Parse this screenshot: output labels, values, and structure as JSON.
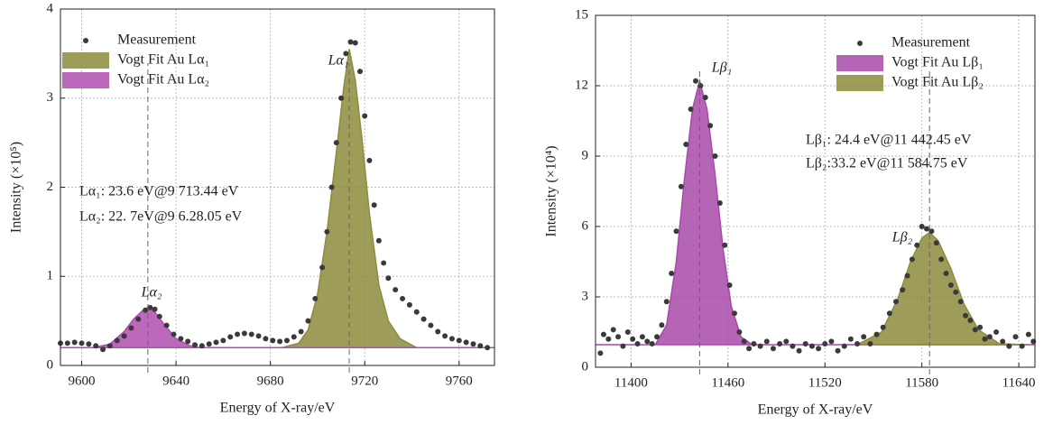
{
  "chart_data": [
    {
      "type": "spectrum",
      "xlabel": "Energy of X-ray/eV",
      "ylabel": "Intensity (×10⁵)",
      "xlim": [
        9591,
        9775
      ],
      "xticks": [
        9600,
        9640,
        9680,
        9720,
        9760
      ],
      "ylim": [
        0,
        4
      ],
      "yticks": [
        0,
        1,
        2,
        3,
        4
      ],
      "grid": true,
      "legend": "upper left",
      "series": [
        {
          "name": "Measurement",
          "kind": "scatter",
          "color": "#3a3a3a",
          "x": [
            9591,
            9594,
            9597,
            9600,
            9603,
            9606,
            9609,
            9612,
            9615,
            9618,
            9621,
            9624,
            9627,
            9629,
            9631,
            9633,
            9636,
            9639,
            9642,
            9645,
            9648,
            9651,
            9654,
            9657,
            9660,
            9663,
            9666,
            9669,
            9672,
            9675,
            9678,
            9681,
            9684,
            9687,
            9690,
            9693,
            9696,
            9699,
            9702,
            9704,
            9706,
            9708,
            9710,
            9712,
            9714,
            9716,
            9718,
            9720,
            9722,
            9724,
            9726,
            9728,
            9730,
            9733,
            9736,
            9739,
            9742,
            9745,
            9748,
            9751,
            9754,
            9757,
            9760,
            9763,
            9766,
            9769,
            9772
          ],
          "values": [
            0.25,
            0.25,
            0.26,
            0.25,
            0.24,
            0.22,
            0.18,
            0.22,
            0.28,
            0.33,
            0.42,
            0.52,
            0.62,
            0.65,
            0.63,
            0.55,
            0.45,
            0.35,
            0.3,
            0.27,
            0.23,
            0.22,
            0.24,
            0.26,
            0.28,
            0.32,
            0.35,
            0.36,
            0.35,
            0.33,
            0.3,
            0.28,
            0.27,
            0.28,
            0.32,
            0.38,
            0.5,
            0.75,
            1.1,
            1.5,
            2.0,
            2.5,
            3.0,
            3.5,
            3.63,
            3.62,
            3.3,
            2.8,
            2.3,
            1.8,
            1.4,
            1.15,
            0.98,
            0.85,
            0.75,
            0.68,
            0.6,
            0.52,
            0.45,
            0.38,
            0.33,
            0.3,
            0.28,
            0.26,
            0.24,
            0.22,
            0.2
          ]
        },
        {
          "name": "Vogt Fit Au Lα₁",
          "kind": "area",
          "color": "#8c8c3c",
          "x": [
            9685,
            9692,
            9696,
            9700,
            9704,
            9708,
            9711,
            9713.44,
            9716,
            9719,
            9722,
            9726,
            9730,
            9735,
            9742
          ],
          "values": [
            0.2,
            0.25,
            0.4,
            0.8,
            1.5,
            2.4,
            3.1,
            3.55,
            3.2,
            2.5,
            1.7,
            0.9,
            0.5,
            0.3,
            0.2
          ]
        },
        {
          "name": "Vogt Fit Au Lα₂",
          "kind": "area",
          "color": "#b04fb0",
          "x": [
            9591,
            9605,
            9612,
            9618,
            9622,
            9626,
            9628,
            9631,
            9635,
            9640,
            9646,
            9650,
            9775
          ],
          "values": [
            0.2,
            0.2,
            0.24,
            0.38,
            0.52,
            0.62,
            0.65,
            0.6,
            0.46,
            0.3,
            0.22,
            0.2,
            0.2
          ]
        }
      ],
      "vlines": [
        9713.44,
        9628.05
      ],
      "peak_labels": [
        "Lα₁",
        "Lα₂"
      ],
      "annotations": [
        "Lα₁: 23.6 eV@9 713.44 eV",
        "Lα₂: 22. 7eV@9 6.28.05 eV"
      ]
    },
    {
      "type": "spectrum",
      "xlabel": "Energy of X-ray/eV",
      "ylabel": "Intensity (×10⁴)",
      "xlim": [
        11378,
        11650
      ],
      "xticks": [
        11400,
        11460,
        11520,
        11580,
        11640
      ],
      "ylim": [
        0,
        15
      ],
      "yticks": [
        0,
        3,
        6,
        9,
        12,
        15
      ],
      "grid": true,
      "legend": "upper right",
      "series": [
        {
          "name": "Measurement",
          "kind": "scatter",
          "color": "#3a3a3a",
          "x": [
            11381,
            11383,
            11386,
            11389,
            11392,
            11395,
            11398,
            11401,
            11404,
            11407,
            11410,
            11413,
            11416,
            11419,
            11422,
            11425,
            11428,
            11431,
            11434,
            11437,
            11440,
            11443,
            11446,
            11449,
            11452,
            11455,
            11458,
            11461,
            11464,
            11467,
            11470,
            11473,
            11476,
            11480,
            11484,
            11488,
            11492,
            11496,
            11500,
            11504,
            11508,
            11512,
            11516,
            11520,
            11524,
            11528,
            11532,
            11536,
            11540,
            11544,
            11548,
            11552,
            11556,
            11560,
            11564,
            11568,
            11571,
            11574,
            11577,
            11580,
            11583,
            11586,
            11589,
            11592,
            11595,
            11598,
            11601,
            11604,
            11607,
            11610,
            11613,
            11616,
            11619,
            11622,
            11626,
            11630,
            11634,
            11638,
            11642,
            11646,
            11649
          ],
          "values": [
            0.6,
            1.4,
            1.2,
            1.6,
            1.3,
            0.9,
            1.5,
            1.2,
            1.0,
            1.3,
            1.1,
            1.0,
            1.3,
            1.8,
            2.8,
            4.0,
            5.8,
            7.7,
            9.5,
            11.0,
            12.2,
            12.0,
            11.5,
            10.3,
            9.0,
            7.0,
            5.2,
            3.5,
            2.3,
            1.5,
            1.1,
            0.8,
            1.0,
            0.9,
            1.1,
            0.8,
            1.0,
            1.1,
            0.9,
            0.7,
            1.0,
            0.9,
            0.8,
            1.0,
            1.1,
            0.7,
            0.9,
            1.2,
            1.0,
            1.3,
            1.0,
            1.4,
            1.7,
            2.3,
            2.8,
            3.3,
            3.9,
            4.6,
            5.2,
            6.0,
            5.9,
            5.8,
            5.3,
            4.6,
            4.0,
            3.5,
            3.2,
            2.8,
            2.2,
            2.0,
            1.6,
            1.7,
            1.2,
            1.3,
            1.5,
            1.1,
            0.9,
            1.3,
            0.9,
            1.4,
            1.1
          ]
        },
        {
          "name": "Vogt Fit Au Lβ₁",
          "kind": "area",
          "color": "#a84aa8",
          "x": [
            11378,
            11415,
            11422,
            11428,
            11433,
            11438,
            11442.45,
            11447,
            11452,
            11457,
            11462,
            11468,
            11475,
            11650
          ],
          "values": [
            0.96,
            0.96,
            1.8,
            4.5,
            8.0,
            11.0,
            12.2,
            11.0,
            8.2,
            5.0,
            2.6,
            1.3,
            0.96,
            0.96
          ]
        },
        {
          "name": "Vogt Fit Au Lβ₂",
          "kind": "area",
          "color": "#8c8c3c",
          "x": [
            11540,
            11555,
            11565,
            11573,
            11580,
            11584.75,
            11590,
            11598,
            11606,
            11615,
            11628,
            11645
          ],
          "values": [
            0.96,
            1.5,
            2.9,
            4.5,
            5.5,
            5.75,
            5.4,
            4.2,
            2.7,
            1.6,
            1.0,
            0.96
          ]
        }
      ],
      "vlines": [
        11442.45,
        11584.75
      ],
      "peak_labels": [
        "Lβ₁",
        "Lβ₂"
      ],
      "annotations": [
        "Lβ₁: 24.4 eV@11 442.45 eV",
        "Lβ₂:33.2 eV@11 584.75 eV"
      ]
    }
  ]
}
